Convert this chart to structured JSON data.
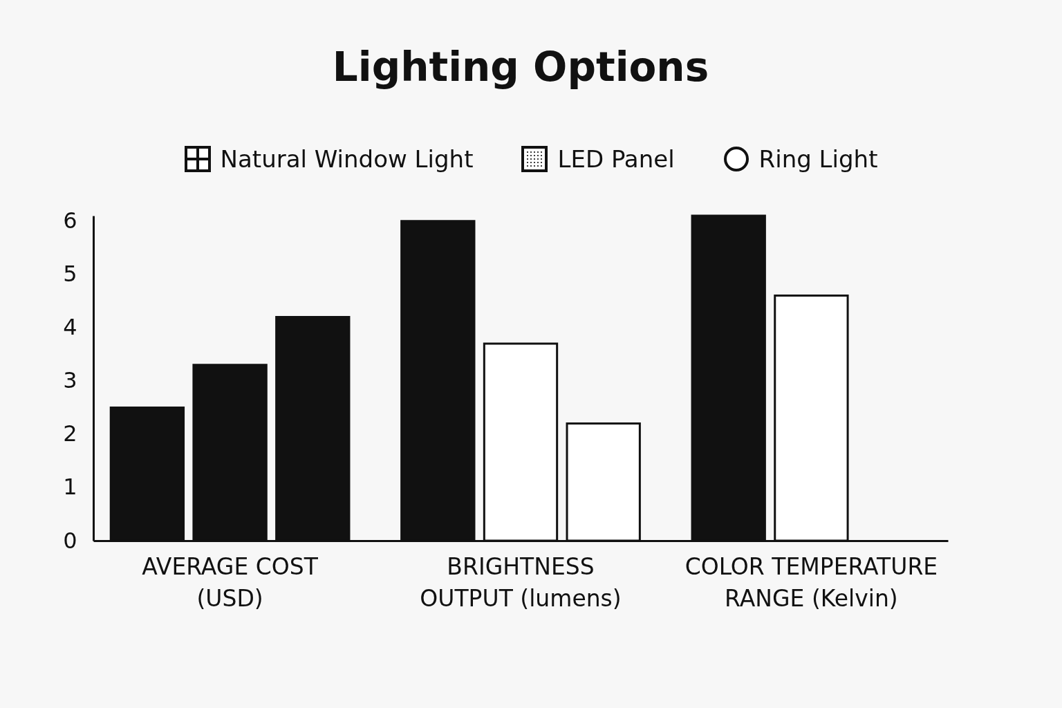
{
  "chart_data": {
    "type": "bar",
    "title": "Lighting Options",
    "categories": [
      "AVERAGE COST\n(USD)",
      "BRIGHTNESS\nOUTPUT (lumens)",
      "COLOR TEMPERATURE\nRANGE (Kelvin)"
    ],
    "series": [
      {
        "name": "Natural Window Light",
        "colors": [
          "#111111",
          "#111111",
          "#111111"
        ],
        "values": [
          2.5,
          6.0,
          6.1
        ]
      },
      {
        "name": "LED Panel",
        "colors": [
          "#111111",
          "#ffffff",
          "#ffffff"
        ],
        "values": [
          3.3,
          3.7,
          4.6
        ]
      },
      {
        "name": "Ring Light",
        "colors": [
          "#111111",
          "#ffffff",
          null
        ],
        "values": [
          4.2,
          2.2,
          null
        ]
      }
    ],
    "ylim": [
      0,
      6.1
    ],
    "yticks": [
      0,
      1,
      2,
      3,
      4,
      5,
      6
    ],
    "grid": false,
    "legend": "top"
  }
}
